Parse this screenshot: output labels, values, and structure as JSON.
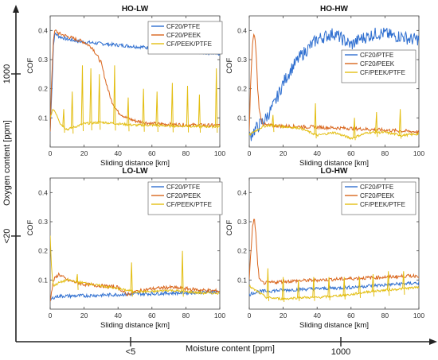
{
  "figure": {
    "x_axis_label": "Moisture content [ppm]",
    "y_axis_label": "Oxygen content [ppm]",
    "x_ticks": [
      "<5",
      "1000"
    ],
    "y_ticks": [
      "1000",
      "<20"
    ]
  },
  "colors": {
    "CF20/PTFE": "#2f6fd0",
    "CF20/PEEK": "#d9651c",
    "CF/PEEK/PTFE": "#e3be12"
  },
  "chart_data": [
    {
      "type": "line",
      "title": "HO-LW",
      "xlabel": "Sliding distance [km]",
      "ylabel": "COF",
      "xlim": [
        0,
        100
      ],
      "ylim": [
        0,
        0.45
      ],
      "xticks": [
        "0",
        "20",
        "40",
        "60",
        "80",
        "100"
      ],
      "yticks": [
        "0.1",
        "0.2",
        "0.3",
        "0.4"
      ],
      "legend": "top-right",
      "series": [
        {
          "name": "CF20/PTFE",
          "x": [
            0,
            1,
            2,
            3,
            5,
            10,
            20,
            30,
            40,
            50,
            60,
            70,
            80,
            90,
            100
          ],
          "y": [
            0.05,
            0.2,
            0.36,
            0.39,
            0.38,
            0.37,
            0.36,
            0.355,
            0.35,
            0.345,
            0.34,
            0.335,
            0.33,
            0.325,
            0.32
          ]
        },
        {
          "name": "CF20/PEEK",
          "x": [
            0,
            1,
            2,
            3,
            5,
            10,
            20,
            25,
            30,
            33,
            36,
            40,
            45,
            50,
            55,
            60,
            70,
            80,
            90,
            100
          ],
          "y": [
            0.05,
            0.25,
            0.38,
            0.4,
            0.39,
            0.38,
            0.36,
            0.34,
            0.29,
            0.22,
            0.16,
            0.12,
            0.1,
            0.09,
            0.085,
            0.08,
            0.078,
            0.076,
            0.075,
            0.074
          ]
        },
        {
          "name": "CF/PEEK/PTFE",
          "x": [
            0,
            1,
            2,
            4,
            6,
            10,
            15,
            20,
            30,
            40,
            50,
            60,
            70,
            80,
            90,
            100
          ],
          "y": [
            0.1,
            0.12,
            0.13,
            0.11,
            0.08,
            0.06,
            0.07,
            0.08,
            0.085,
            0.08,
            0.075,
            0.075,
            0.072,
            0.072,
            0.07,
            0.07
          ],
          "spikes": [
            8,
            13,
            19,
            24,
            29,
            38,
            46,
            55,
            63,
            72,
            81,
            88,
            98
          ],
          "spike_values": [
            0.13,
            0.19,
            0.28,
            0.27,
            0.25,
            0.28,
            0.17,
            0.2,
            0.19,
            0.22,
            0.21,
            0.18,
            0.27
          ]
        }
      ]
    },
    {
      "type": "line",
      "title": "HO-HW",
      "xlabel": "Sliding distance [km]",
      "ylabel": "COF",
      "xlim": [
        0,
        100
      ],
      "ylim": [
        0,
        0.45
      ],
      "xticks": [
        "0",
        "20",
        "40",
        "60",
        "80",
        "100"
      ],
      "yticks": [
        "0.1",
        "0.2",
        "0.3",
        "0.4"
      ],
      "legend": "right",
      "series": [
        {
          "name": "CF20/PTFE",
          "x": [
            0,
            2,
            5,
            10,
            15,
            20,
            25,
            30,
            35,
            40,
            45,
            50,
            55,
            60,
            65,
            70,
            75,
            80,
            85,
            90,
            95,
            100
          ],
          "y": [
            0.03,
            0.05,
            0.07,
            0.1,
            0.15,
            0.22,
            0.27,
            0.31,
            0.34,
            0.37,
            0.38,
            0.39,
            0.37,
            0.35,
            0.37,
            0.38,
            0.39,
            0.39,
            0.38,
            0.38,
            0.37,
            0.37
          ]
        },
        {
          "name": "CF20/PEEK",
          "x": [
            0,
            1,
            2,
            3,
            4,
            5,
            6,
            8,
            10,
            20,
            40,
            60,
            80,
            100
          ],
          "y": [
            0.05,
            0.25,
            0.36,
            0.39,
            0.33,
            0.2,
            0.12,
            0.08,
            0.075,
            0.072,
            0.068,
            0.064,
            0.058,
            0.052
          ]
        },
        {
          "name": "CF/PEEK/PTFE",
          "x": [
            0,
            2,
            5,
            8,
            12,
            20,
            30,
            40,
            50,
            60,
            70,
            80,
            90,
            100
          ],
          "y": [
            0.04,
            0.05,
            0.06,
            0.07,
            0.075,
            0.07,
            0.065,
            0.04,
            0.05,
            0.03,
            0.05,
            0.05,
            0.04,
            0.045
          ],
          "spikes": [
            14,
            39,
            62,
            75,
            89
          ],
          "spike_values": [
            0.11,
            0.15,
            0.1,
            0.12,
            0.13
          ]
        }
      ]
    },
    {
      "type": "line",
      "title": "LO-LW",
      "xlabel": "Sliding distance [km]",
      "ylabel": "COF",
      "xlim": [
        0,
        100
      ],
      "ylim": [
        0,
        0.45
      ],
      "xticks": [
        "0",
        "20",
        "40",
        "60",
        "80",
        "100"
      ],
      "yticks": [
        "0.1",
        "0.2",
        "0.3",
        "0.4"
      ],
      "legend": "top-right",
      "series": [
        {
          "name": "CF20/PTFE",
          "x": [
            0,
            2,
            5,
            10,
            20,
            30,
            40,
            50,
            60,
            70,
            80,
            90,
            100
          ],
          "y": [
            0.03,
            0.04,
            0.045,
            0.045,
            0.046,
            0.048,
            0.05,
            0.052,
            0.053,
            0.055,
            0.056,
            0.058,
            0.06
          ]
        },
        {
          "name": "CF20/PEEK",
          "x": [
            0,
            2,
            5,
            10,
            20,
            30,
            40,
            45,
            50,
            60,
            70,
            80,
            90,
            100
          ],
          "y": [
            0.03,
            0.1,
            0.12,
            0.1,
            0.085,
            0.08,
            0.075,
            0.05,
            0.06,
            0.07,
            0.075,
            0.07,
            0.065,
            0.062
          ]
        },
        {
          "name": "CF/PEEK/PTFE",
          "x": [
            0,
            1,
            2,
            5,
            10,
            20,
            30,
            40,
            50,
            60,
            70,
            80,
            90,
            100
          ],
          "y": [
            0.25,
            0.12,
            0.08,
            0.09,
            0.1,
            0.09,
            0.08,
            0.07,
            0.06,
            0.06,
            0.065,
            0.06,
            0.055,
            0.055
          ],
          "spikes": [
            16,
            48,
            78
          ],
          "spike_values": [
            0.12,
            0.16,
            0.2
          ]
        }
      ]
    },
    {
      "type": "line",
      "title": "LO-HW",
      "xlabel": "Sliding distance [km]",
      "ylabel": "COF",
      "xlim": [
        0,
        100
      ],
      "ylim": [
        0,
        0.45
      ],
      "xticks": [
        "0",
        "20",
        "40",
        "60",
        "80",
        "100"
      ],
      "yticks": [
        "0.1",
        "0.2",
        "0.3",
        "0.4"
      ],
      "legend": "top-right",
      "series": [
        {
          "name": "CF20/PTFE",
          "x": [
            0,
            2,
            5,
            10,
            20,
            30,
            40,
            50,
            60,
            70,
            80,
            90,
            100
          ],
          "y": [
            0.05,
            0.055,
            0.06,
            0.062,
            0.065,
            0.068,
            0.07,
            0.072,
            0.075,
            0.08,
            0.083,
            0.087,
            0.09
          ]
        },
        {
          "name": "CF20/PEEK",
          "x": [
            0,
            1,
            2,
            3,
            4,
            5,
            6,
            8,
            10,
            20,
            40,
            60,
            80,
            100
          ],
          "y": [
            0.1,
            0.2,
            0.29,
            0.31,
            0.25,
            0.15,
            0.1,
            0.09,
            0.09,
            0.095,
            0.1,
            0.105,
            0.11,
            0.115
          ]
        },
        {
          "name": "CF/PEEK/PTFE",
          "x": [
            0,
            2,
            5,
            10,
            20,
            30,
            40,
            50,
            60,
            70,
            80,
            90,
            100
          ],
          "y": [
            0.08,
            0.07,
            0.06,
            0.04,
            0.035,
            0.04,
            0.04,
            0.045,
            0.05,
            0.06,
            0.065,
            0.07,
            0.075
          ],
          "spikes": [
            11,
            20,
            29,
            38,
            47,
            56,
            65,
            73,
            82,
            91
          ],
          "spike_values": [
            0.14,
            0.11,
            0.1,
            0.11,
            0.11,
            0.11,
            0.11,
            0.12,
            0.13,
            0.13
          ]
        }
      ]
    }
  ]
}
